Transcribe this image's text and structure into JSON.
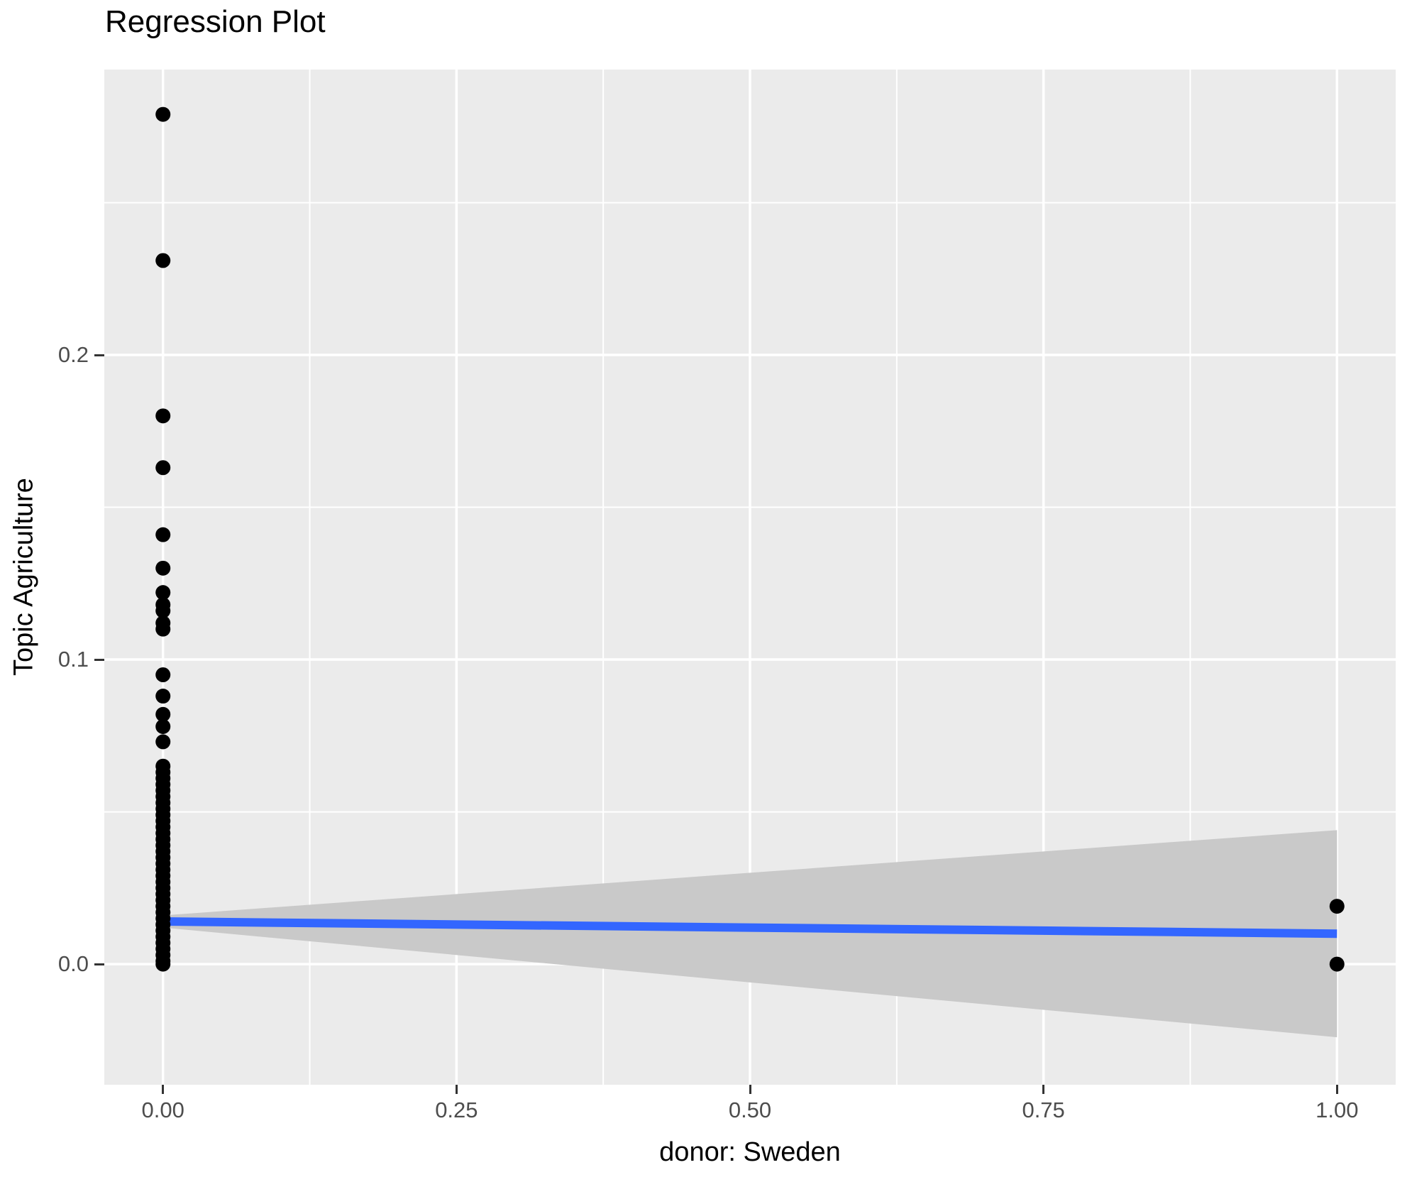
{
  "title": "Regression Plot",
  "colors": {
    "background": "#FFFFFF",
    "panel_background": "#EBEBEB",
    "gridline": "#FFFFFF",
    "point": "#000000",
    "regression_line": "#3366FF",
    "confidence_band": "#C9C9C9",
    "tick_label": "#4D4D4D",
    "tick_mark": "#333333",
    "axis_title": "#000000"
  },
  "chart_data": {
    "type": "scatter",
    "title": "Regression Plot",
    "xlabel": "donor: Sweden",
    "ylabel": "Topic Agriculture",
    "xlim": [
      -0.05,
      1.05
    ],
    "ylim": [
      -0.0396,
      0.2937
    ],
    "grid": "white major and minor gridlines on gray panel",
    "legend": "none",
    "x_ticks": [
      {
        "value": 0.0,
        "label": "0.00"
      },
      {
        "value": 0.25,
        "label": "0.25"
      },
      {
        "value": 0.5,
        "label": "0.50"
      },
      {
        "value": 0.75,
        "label": "0.75"
      },
      {
        "value": 1.0,
        "label": "1.00"
      }
    ],
    "y_ticks": [
      {
        "value": 0.0,
        "label": "0.0"
      },
      {
        "value": 0.1,
        "label": "0.1"
      },
      {
        "value": 0.2,
        "label": "0.2"
      }
    ],
    "x_minor_ticks": [
      0.125,
      0.375,
      0.625,
      0.875
    ],
    "y_minor_ticks": [
      0.05,
      0.15,
      0.25
    ],
    "series": [
      {
        "name": "observations",
        "kind": "points",
        "color": "#000000",
        "points": [
          [
            0,
            0.279
          ],
          [
            0,
            0.231
          ],
          [
            0,
            0.18
          ],
          [
            0,
            0.163
          ],
          [
            0,
            0.141
          ],
          [
            0,
            0.13
          ],
          [
            0,
            0.122
          ],
          [
            0,
            0.118
          ],
          [
            0,
            0.116
          ],
          [
            0,
            0.112
          ],
          [
            0,
            0.11
          ],
          [
            0,
            0.095
          ],
          [
            0,
            0.088
          ],
          [
            0,
            0.082
          ],
          [
            0,
            0.078
          ],
          [
            0,
            0.073
          ],
          [
            0,
            0.065
          ],
          [
            0,
            0.063
          ],
          [
            0,
            0.061
          ],
          [
            0,
            0.059
          ],
          [
            0,
            0.057
          ],
          [
            0,
            0.055
          ],
          [
            0,
            0.053
          ],
          [
            0,
            0.051
          ],
          [
            0,
            0.049
          ],
          [
            0,
            0.047
          ],
          [
            0,
            0.045
          ],
          [
            0,
            0.043
          ],
          [
            0,
            0.041
          ],
          [
            0,
            0.039
          ],
          [
            0,
            0.037
          ],
          [
            0,
            0.035
          ],
          [
            0,
            0.033
          ],
          [
            0,
            0.031
          ],
          [
            0,
            0.029
          ],
          [
            0,
            0.027
          ],
          [
            0,
            0.025
          ],
          [
            0,
            0.023
          ],
          [
            0,
            0.021
          ],
          [
            0,
            0.019
          ],
          [
            0,
            0.017
          ],
          [
            0,
            0.015
          ],
          [
            0,
            0.013
          ],
          [
            0,
            0.011
          ],
          [
            0,
            0.009
          ],
          [
            0,
            0.007
          ],
          [
            0,
            0.005
          ],
          [
            0,
            0.003
          ],
          [
            0,
            0.001
          ],
          [
            0,
            0.0
          ],
          [
            1,
            0.019
          ],
          [
            1,
            0.0
          ]
        ]
      },
      {
        "name": "confidence-band",
        "kind": "ribbon",
        "color": "#C9C9C9",
        "x": [
          0,
          1
        ],
        "upper": [
          0.016,
          0.044
        ],
        "lower": [
          0.012,
          -0.024
        ]
      },
      {
        "name": "regression-fit",
        "kind": "line",
        "color": "#3366FF",
        "x": [
          0,
          1
        ],
        "y": [
          0.014,
          0.01
        ]
      }
    ]
  }
}
